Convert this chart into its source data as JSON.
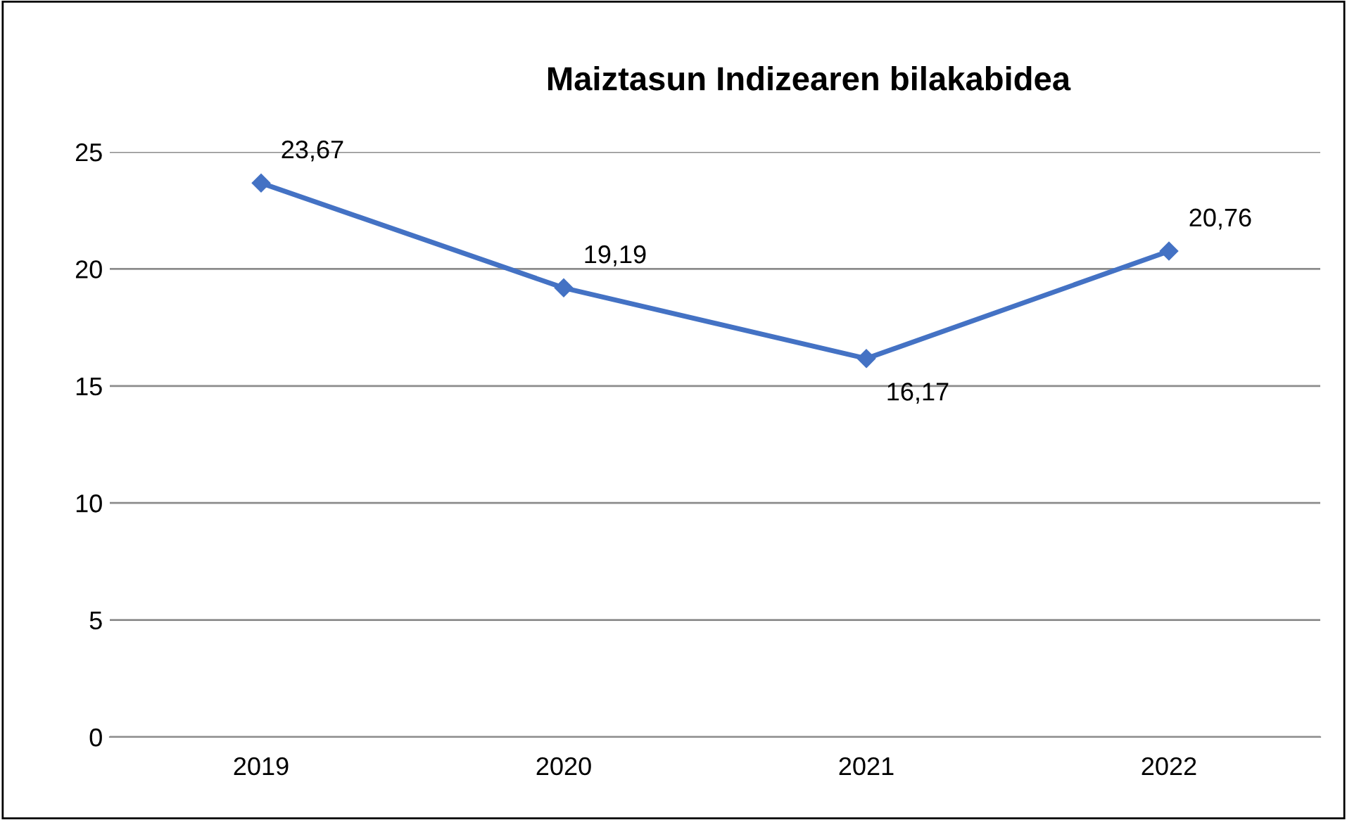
{
  "chart_data": {
    "type": "line",
    "title": "Maiztasun Indizearen bilakabidea",
    "categories": [
      "2019",
      "2020",
      "2021",
      "2022"
    ],
    "series": [
      {
        "color": "#4472c4",
        "values": [
          23.67,
          19.19,
          16.17,
          20.76
        ],
        "value_labels": [
          "23,67",
          "19,19",
          "16,17",
          "20,76"
        ]
      }
    ],
    "ylim": [
      0,
      25
    ],
    "yticks": [
      0,
      5,
      10,
      15,
      20,
      25
    ],
    "grid": "y",
    "marker": "diamond",
    "line_style": "solid",
    "legend": false
  }
}
